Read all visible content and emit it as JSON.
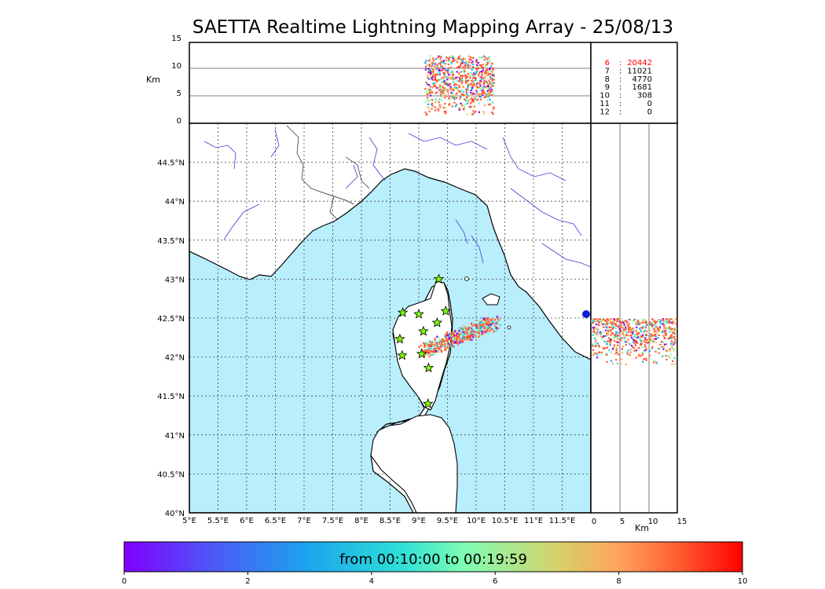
{
  "title": "SAETTA Realtime Lightning Mapping Array - 25/08/13",
  "top_panel": {
    "unit_label": "Km",
    "alt_ticks": [
      "0",
      "5",
      "10",
      "15"
    ]
  },
  "side_panel": {
    "unit_label": "Km",
    "alt_ticks": [
      "0",
      "5",
      "10",
      "15"
    ]
  },
  "station_counts": [
    {
      "n": "6",
      "count": "20442",
      "highlight": true
    },
    {
      "n": "7",
      "count": "11021",
      "highlight": false
    },
    {
      "n": "8",
      "count": "4770",
      "highlight": false
    },
    {
      "n": "9",
      "count": "1681",
      "highlight": false
    },
    {
      "n": "10",
      "count": "308",
      "highlight": false
    },
    {
      "n": "11",
      "count": "0",
      "highlight": false
    },
    {
      "n": "12",
      "count": "0",
      "highlight": false
    }
  ],
  "map": {
    "lon_labels": [
      "5°E",
      "5.5°E",
      "6°E",
      "6.5°E",
      "7°E",
      "7.5°E",
      "8°E",
      "8.5°E",
      "9°E",
      "9.5°E",
      "10°E",
      "10.5°E",
      "11°E",
      "11.5°E"
    ],
    "lat_labels": [
      "40°N",
      "40.5°N",
      "41°N",
      "41.5°N",
      "42°N",
      "42.5°N",
      "43°N",
      "43.5°N",
      "44°N",
      "44.5°N"
    ],
    "sea_color": "#b9eefc",
    "station_color": "#7fff00",
    "stations": [
      {
        "lon": 9.35,
        "lat": 43.0
      },
      {
        "lon": 8.72,
        "lat": 42.57
      },
      {
        "lon": 9.0,
        "lat": 42.55
      },
      {
        "lon": 9.47,
        "lat": 42.59
      },
      {
        "lon": 9.32,
        "lat": 42.44
      },
      {
        "lon": 9.08,
        "lat": 42.33
      },
      {
        "lon": 8.67,
        "lat": 42.23
      },
      {
        "lon": 8.71,
        "lat": 42.02
      },
      {
        "lon": 9.05,
        "lat": 42.04
      },
      {
        "lon": 9.17,
        "lat": 41.86
      },
      {
        "lon": 9.16,
        "lat": 41.4
      }
    ]
  },
  "colorbar": {
    "label": "from 00:10:00 to 00:19:59",
    "ticks": [
      "0",
      "2",
      "4",
      "6",
      "8",
      "10"
    ],
    "range": [
      0,
      10
    ]
  }
}
